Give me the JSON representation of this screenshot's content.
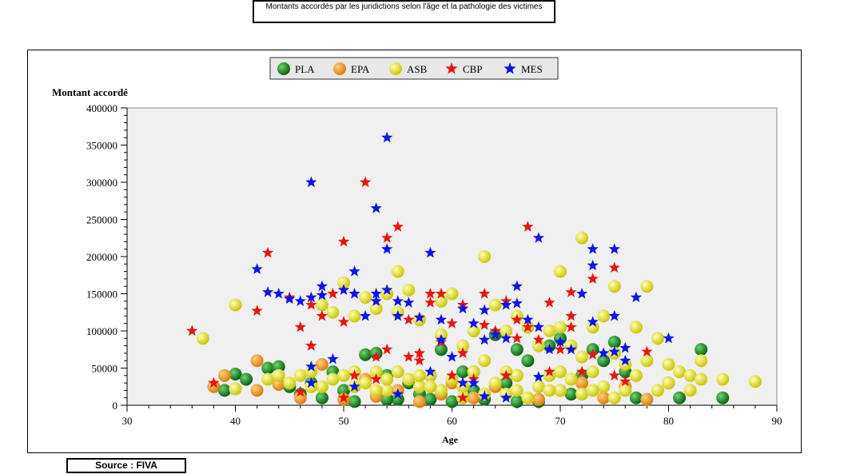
{
  "chart_data": {
    "type": "scatter",
    "title": "Montants accordés par les juridictions selon l'âge et la pathologie des victimes",
    "xlabel": "Age",
    "ylabel": "Montant accordé",
    "xlim": [
      30,
      90
    ],
    "ylim": [
      0,
      400000
    ],
    "x_ticks": [
      30,
      40,
      50,
      60,
      70,
      80,
      90
    ],
    "y_ticks": [
      0,
      50000,
      100000,
      150000,
      200000,
      250000,
      300000,
      350000,
      400000
    ],
    "legend_position": "top-center",
    "grid": false,
    "series": [
      {
        "name": "PLA",
        "marker": "circle",
        "color": "#0a7d16",
        "points": [
          [
            39,
            20000
          ],
          [
            40,
            42000
          ],
          [
            41,
            35000
          ],
          [
            43,
            50000
          ],
          [
            44,
            52000
          ],
          [
            45,
            25000
          ],
          [
            46,
            15000
          ],
          [
            47,
            30000
          ],
          [
            48,
            10000
          ],
          [
            49,
            45000
          ],
          [
            50,
            20000
          ],
          [
            51,
            5000
          ],
          [
            52,
            68000
          ],
          [
            53,
            70000
          ],
          [
            54,
            40000
          ],
          [
            55,
            8000
          ],
          [
            56,
            30000
          ],
          [
            57,
            15000
          ],
          [
            58,
            40000
          ],
          [
            59,
            75000
          ],
          [
            60,
            5000
          ],
          [
            61,
            45000
          ],
          [
            62,
            20000
          ],
          [
            63,
            8000
          ],
          [
            64,
            95000
          ],
          [
            65,
            30000
          ],
          [
            66,
            75000
          ],
          [
            67,
            60000
          ],
          [
            68,
            5000
          ],
          [
            69,
            80000
          ],
          [
            70,
            90000
          ],
          [
            71,
            15000
          ],
          [
            72,
            40000
          ],
          [
            73,
            75000
          ],
          [
            74,
            60000
          ],
          [
            75,
            85000
          ],
          [
            76,
            45000
          ],
          [
            77,
            10000
          ],
          [
            80,
            30000
          ],
          [
            81,
            10000
          ],
          [
            83,
            75000
          ],
          [
            85,
            10000
          ],
          [
            62,
            45000
          ],
          [
            58,
            8000
          ],
          [
            54,
            8000
          ],
          [
            66,
            5000
          ]
        ]
      },
      {
        "name": "EPA",
        "marker": "circle",
        "color": "#f39c12",
        "points": [
          [
            38,
            25000
          ],
          [
            39,
            40000
          ],
          [
            42,
            60000
          ],
          [
            42,
            20000
          ],
          [
            44,
            28000
          ],
          [
            46,
            10000
          ],
          [
            48,
            55000
          ],
          [
            50,
            8000
          ],
          [
            53,
            12000
          ],
          [
            55,
            20000
          ],
          [
            57,
            5000
          ],
          [
            59,
            15000
          ],
          [
            62,
            10000
          ],
          [
            64,
            25000
          ],
          [
            66,
            40000
          ],
          [
            68,
            8000
          ],
          [
            70,
            20000
          ],
          [
            72,
            30000
          ],
          [
            74,
            10000
          ],
          [
            76,
            25000
          ],
          [
            78,
            8000
          ],
          [
            60,
            30000
          ],
          [
            52,
            35000
          ]
        ]
      },
      {
        "name": "ASB",
        "marker": "circle",
        "color": "#f0ef0c",
        "points": [
          [
            37,
            90000
          ],
          [
            40,
            135000
          ],
          [
            40,
            22000
          ],
          [
            43,
            35000
          ],
          [
            44,
            40000
          ],
          [
            45,
            30000
          ],
          [
            46,
            40000
          ],
          [
            47,
            45000
          ],
          [
            48,
            135000
          ],
          [
            48,
            25000
          ],
          [
            49,
            125000
          ],
          [
            49,
            35000
          ],
          [
            50,
            165000
          ],
          [
            50,
            40000
          ],
          [
            51,
            25000
          ],
          [
            51,
            120000
          ],
          [
            52,
            145000
          ],
          [
            52,
            30000
          ],
          [
            53,
            130000
          ],
          [
            53,
            45000
          ],
          [
            54,
            150000
          ],
          [
            54,
            20000
          ],
          [
            55,
            180000
          ],
          [
            55,
            45000
          ],
          [
            55,
            125000
          ],
          [
            56,
            35000
          ],
          [
            56,
            155000
          ],
          [
            57,
            25000
          ],
          [
            57,
            115000
          ],
          [
            58,
            40000
          ],
          [
            59,
            140000
          ],
          [
            59,
            95000
          ],
          [
            59,
            20000
          ],
          [
            60,
            150000
          ],
          [
            60,
            35000
          ],
          [
            61,
            80000
          ],
          [
            61,
            25000
          ],
          [
            62,
            100000
          ],
          [
            62,
            45000
          ],
          [
            63,
            200000
          ],
          [
            63,
            15000
          ],
          [
            63,
            60000
          ],
          [
            64,
            135000
          ],
          [
            64,
            30000
          ],
          [
            65,
            100000
          ],
          [
            65,
            15000
          ],
          [
            66,
            120000
          ],
          [
            66,
            40000
          ],
          [
            67,
            105000
          ],
          [
            67,
            10000
          ],
          [
            68,
            80000
          ],
          [
            68,
            25000
          ],
          [
            69,
            100000
          ],
          [
            69,
            40000
          ],
          [
            70,
            180000
          ],
          [
            70,
            105000
          ],
          [
            70,
            20000
          ],
          [
            71,
            80000
          ],
          [
            71,
            35000
          ],
          [
            72,
            225000
          ],
          [
            72,
            65000
          ],
          [
            72,
            15000
          ],
          [
            73,
            105000
          ],
          [
            73,
            45000
          ],
          [
            74,
            120000
          ],
          [
            74,
            25000
          ],
          [
            75,
            160000
          ],
          [
            75,
            70000
          ],
          [
            75,
            10000
          ],
          [
            76,
            55000
          ],
          [
            76,
            20000
          ],
          [
            77,
            105000
          ],
          [
            77,
            40000
          ],
          [
            78,
            160000
          ],
          [
            78,
            60000
          ],
          [
            79,
            90000
          ],
          [
            79,
            20000
          ],
          [
            80,
            55000
          ],
          [
            80,
            30000
          ],
          [
            81,
            45000
          ],
          [
            82,
            20000
          ],
          [
            82,
            40000
          ],
          [
            83,
            60000
          ],
          [
            83,
            35000
          ],
          [
            85,
            35000
          ],
          [
            88,
            32000
          ],
          [
            47,
            25000
          ],
          [
            51,
            45000
          ],
          [
            53,
            20000
          ],
          [
            57,
            40000
          ],
          [
            61,
            10000
          ],
          [
            65,
            45000
          ],
          [
            69,
            20000
          ],
          [
            73,
            20000
          ],
          [
            58,
            25000
          ],
          [
            54,
            35000
          ],
          [
            66,
            20000
          ],
          [
            70,
            45000
          ]
        ]
      },
      {
        "name": "CBP",
        "marker": "star",
        "color": "#e8150c",
        "points": [
          [
            36,
            100000
          ],
          [
            38,
            30000
          ],
          [
            42,
            127000
          ],
          [
            43,
            205000
          ],
          [
            45,
            145000
          ],
          [
            46,
            105000
          ],
          [
            46,
            18000
          ],
          [
            47,
            80000
          ],
          [
            47,
            135000
          ],
          [
            48,
            120000
          ],
          [
            49,
            150000
          ],
          [
            50,
            220000
          ],
          [
            50,
            112000
          ],
          [
            51,
            40000
          ],
          [
            52,
            300000
          ],
          [
            53,
            65000
          ],
          [
            53,
            35000
          ],
          [
            54,
            225000
          ],
          [
            54,
            75000
          ],
          [
            55,
            240000
          ],
          [
            56,
            115000
          ],
          [
            56,
            65000
          ],
          [
            57,
            70000
          ],
          [
            58,
            150000
          ],
          [
            58,
            138000
          ],
          [
            59,
            85000
          ],
          [
            59,
            150000
          ],
          [
            60,
            110000
          ],
          [
            60,
            40000
          ],
          [
            61,
            70000
          ],
          [
            61,
            135000
          ],
          [
            61,
            10000
          ],
          [
            62,
            35000
          ],
          [
            63,
            150000
          ],
          [
            63,
            108000
          ],
          [
            64,
            100000
          ],
          [
            65,
            140000
          ],
          [
            65,
            40000
          ],
          [
            66,
            115000
          ],
          [
            66,
            90000
          ],
          [
            67,
            240000
          ],
          [
            67,
            105000
          ],
          [
            68,
            88000
          ],
          [
            69,
            138000
          ],
          [
            69,
            45000
          ],
          [
            70,
            75000
          ],
          [
            71,
            152000
          ],
          [
            71,
            120000
          ],
          [
            71,
            105000
          ],
          [
            72,
            45000
          ],
          [
            73,
            170000
          ],
          [
            73,
            68000
          ],
          [
            75,
            185000
          ],
          [
            75,
            40000
          ],
          [
            76,
            32000
          ],
          [
            78,
            72000
          ],
          [
            50,
            10000
          ],
          [
            57,
            60000
          ]
        ]
      },
      {
        "name": "MES",
        "marker": "star",
        "color": "#0c14e8",
        "points": [
          [
            42,
            183000
          ],
          [
            43,
            152000
          ],
          [
            44,
            150000
          ],
          [
            45,
            143000
          ],
          [
            46,
            140000
          ],
          [
            47,
            300000
          ],
          [
            47,
            145000
          ],
          [
            47,
            52000
          ],
          [
            47,
            30000
          ],
          [
            48,
            160000
          ],
          [
            48,
            148000
          ],
          [
            49,
            62000
          ],
          [
            50,
            155000
          ],
          [
            51,
            180000
          ],
          [
            51,
            150000
          ],
          [
            51,
            25000
          ],
          [
            52,
            120000
          ],
          [
            53,
            265000
          ],
          [
            53,
            140000
          ],
          [
            53,
            150000
          ],
          [
            54,
            360000
          ],
          [
            54,
            210000
          ],
          [
            54,
            155000
          ],
          [
            55,
            140000
          ],
          [
            55,
            120000
          ],
          [
            55,
            15000
          ],
          [
            56,
            138000
          ],
          [
            57,
            118000
          ],
          [
            58,
            205000
          ],
          [
            58,
            45000
          ],
          [
            59,
            115000
          ],
          [
            59,
            88000
          ],
          [
            60,
            65000
          ],
          [
            61,
            130000
          ],
          [
            61,
            30000
          ],
          [
            62,
            110000
          ],
          [
            62,
            30000
          ],
          [
            63,
            128000
          ],
          [
            63,
            88000
          ],
          [
            64,
            95000
          ],
          [
            65,
            135000
          ],
          [
            65,
            90000
          ],
          [
            66,
            160000
          ],
          [
            66,
            137000
          ],
          [
            67,
            115000
          ],
          [
            68,
            225000
          ],
          [
            68,
            105000
          ],
          [
            68,
            38000
          ],
          [
            69,
            75000
          ],
          [
            70,
            85000
          ],
          [
            71,
            75000
          ],
          [
            72,
            150000
          ],
          [
            73,
            210000
          ],
          [
            73,
            188000
          ],
          [
            73,
            112000
          ],
          [
            74,
            70000
          ],
          [
            75,
            210000
          ],
          [
            75,
            120000
          ],
          [
            75,
            72000
          ],
          [
            76,
            77000
          ],
          [
            76,
            60000
          ],
          [
            77,
            145000
          ],
          [
            80,
            90000
          ],
          [
            63,
            12000
          ],
          [
            65,
            10000
          ]
        ]
      }
    ]
  },
  "footer": {
    "source": "Source : FIVA"
  }
}
